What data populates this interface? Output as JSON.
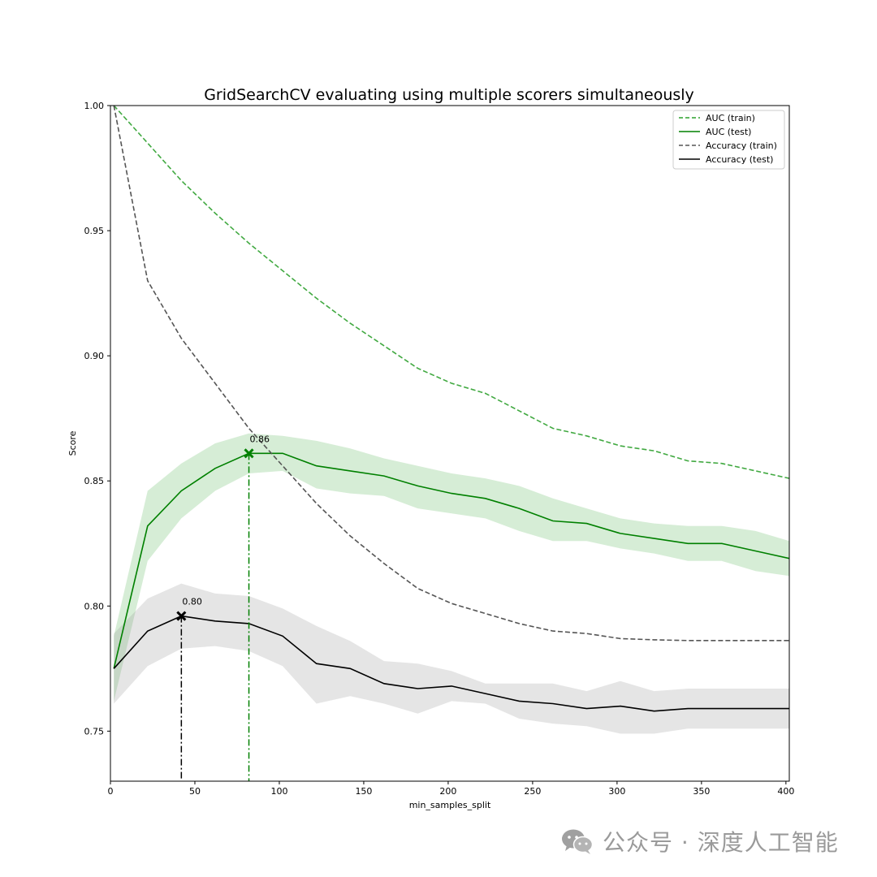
{
  "chart_data": {
    "type": "line",
    "title": "GridSearchCV evaluating using multiple scorers simultaneously",
    "xlabel": "min_samples_split",
    "ylabel": "Score",
    "xlim": [
      0,
      402
    ],
    "ylim": [
      0.73,
      1.0
    ],
    "xticks": [
      0,
      50,
      100,
      150,
      200,
      250,
      300,
      350,
      400
    ],
    "yticks": [
      0.75,
      0.8,
      0.85,
      0.9,
      0.95,
      1.0
    ],
    "xtick_labels": [
      "0",
      "50",
      "100",
      "150",
      "200",
      "250",
      "300",
      "350",
      "400"
    ],
    "ytick_labels": [
      "0.75",
      "0.80",
      "0.85",
      "0.90",
      "0.95",
      "1.00"
    ],
    "grid": false,
    "legend_position": "top-right",
    "x": [
      2,
      22,
      42,
      62,
      82,
      102,
      122,
      142,
      162,
      182,
      202,
      222,
      242,
      262,
      282,
      302,
      322,
      342,
      362,
      382,
      402
    ],
    "series": [
      {
        "name": "AUC (train)",
        "color": "#2ca02c",
        "style": "dashed",
        "values": [
          1.0,
          0.985,
          0.97,
          0.957,
          0.945,
          0.934,
          0.923,
          0.913,
          0.904,
          0.895,
          0.889,
          0.885,
          0.878,
          0.871,
          0.868,
          0.864,
          0.862,
          0.858,
          0.857,
          0.854,
          0.851
        ]
      },
      {
        "name": "AUC (test)",
        "color": "#008000",
        "style": "solid",
        "values": [
          0.775,
          0.832,
          0.846,
          0.855,
          0.861,
          0.861,
          0.856,
          0.854,
          0.852,
          0.848,
          0.845,
          0.843,
          0.839,
          0.834,
          0.833,
          0.829,
          0.827,
          0.825,
          0.825,
          0.822,
          0.819
        ],
        "band_upper": [
          0.788,
          0.846,
          0.857,
          0.865,
          0.869,
          0.868,
          0.866,
          0.863,
          0.859,
          0.856,
          0.853,
          0.851,
          0.848,
          0.843,
          0.839,
          0.835,
          0.833,
          0.832,
          0.832,
          0.83,
          0.826
        ],
        "band_lower": [
          0.762,
          0.818,
          0.835,
          0.846,
          0.853,
          0.854,
          0.847,
          0.845,
          0.844,
          0.839,
          0.837,
          0.835,
          0.83,
          0.826,
          0.826,
          0.823,
          0.821,
          0.818,
          0.818,
          0.814,
          0.812
        ]
      },
      {
        "name": "Accuracy (train)",
        "color": "#555555",
        "style": "dashed",
        "values": [
          1.0,
          0.93,
          0.907,
          0.889,
          0.871,
          0.856,
          0.841,
          0.828,
          0.817,
          0.807,
          0.801,
          0.797,
          0.793,
          0.79,
          0.789,
          0.787,
          0.7865,
          0.7862,
          0.7862,
          0.7862,
          0.7862
        ]
      },
      {
        "name": "Accuracy (test)",
        "color": "#000000",
        "style": "solid",
        "values": [
          0.775,
          0.79,
          0.796,
          0.794,
          0.793,
          0.788,
          0.777,
          0.775,
          0.769,
          0.767,
          0.768,
          0.765,
          0.762,
          0.761,
          0.759,
          0.76,
          0.758,
          0.759,
          0.759,
          0.759,
          0.759
        ],
        "band_upper": [
          0.789,
          0.803,
          0.809,
          0.805,
          0.804,
          0.799,
          0.792,
          0.786,
          0.778,
          0.777,
          0.774,
          0.769,
          0.769,
          0.769,
          0.766,
          0.77,
          0.766,
          0.767,
          0.767,
          0.767,
          0.767
        ],
        "band_lower": [
          0.761,
          0.776,
          0.783,
          0.784,
          0.782,
          0.776,
          0.761,
          0.764,
          0.761,
          0.757,
          0.762,
          0.761,
          0.755,
          0.753,
          0.752,
          0.749,
          0.749,
          0.751,
          0.751,
          0.751,
          0.751
        ]
      }
    ],
    "markers": [
      {
        "series": "AUC (test)",
        "x": 82,
        "y": 0.861,
        "label": "0.86",
        "color": "#008000"
      },
      {
        "series": "Accuracy (test)",
        "x": 42,
        "y": 0.796,
        "label": "0.80",
        "color": "#000000"
      }
    ]
  },
  "watermark": {
    "icon": "wechat-icon",
    "text": "公众号 · 深度人工智能"
  }
}
